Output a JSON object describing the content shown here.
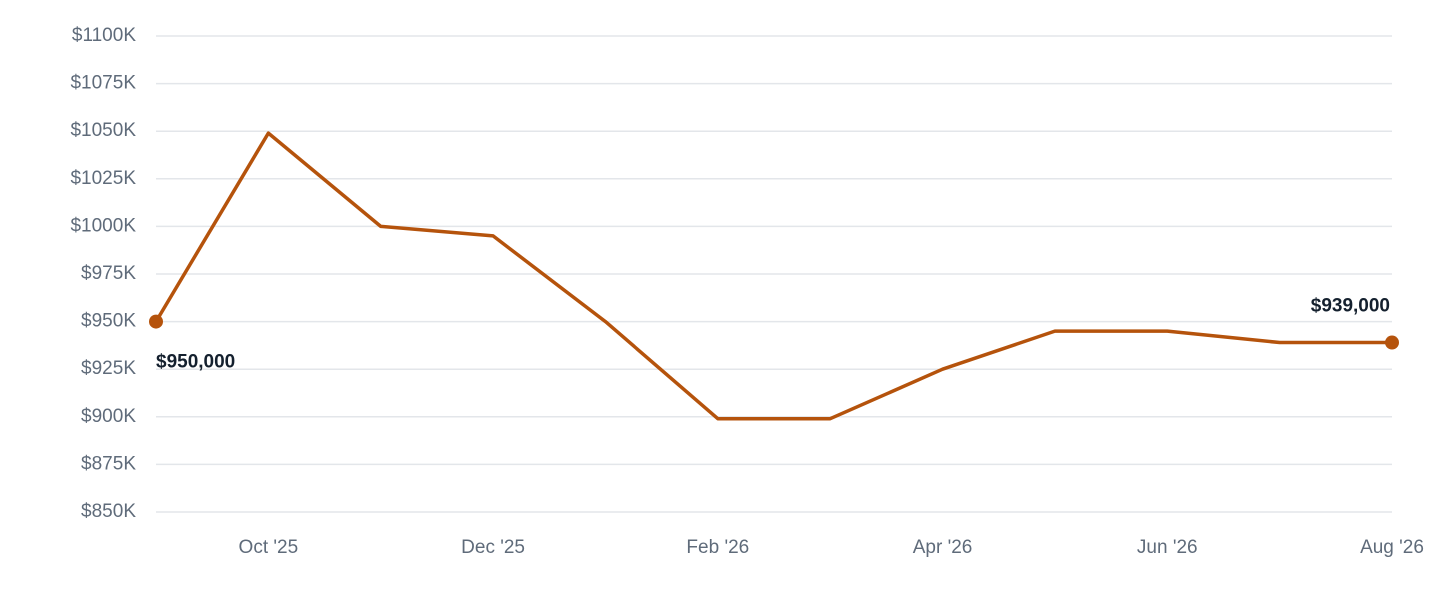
{
  "chart_data": {
    "type": "line",
    "categories": [
      null,
      "Oct '25",
      null,
      "Dec '25",
      null,
      "Feb '26",
      null,
      "Apr '26",
      null,
      "Jun '26",
      null,
      "Aug '26"
    ],
    "series": [
      {
        "color": "#b5530c",
        "values": [
          950000,
          1049000,
          1000000,
          995000,
          950000,
          899000,
          899000,
          925000,
          945000,
          945000,
          939000,
          939000
        ],
        "value_labels": [
          "$950,000",
          null,
          null,
          null,
          null,
          null,
          null,
          null,
          null,
          null,
          null,
          "$939,000"
        ]
      }
    ],
    "ylim": [
      850000,
      1100000
    ],
    "yticks": [
      {
        "value": 850000,
        "label": "$850K"
      },
      {
        "value": 875000,
        "label": "$875K"
      },
      {
        "value": 900000,
        "label": "$900K"
      },
      {
        "value": 925000,
        "label": "$925K"
      },
      {
        "value": 950000,
        "label": "$950K"
      },
      {
        "value": 975000,
        "label": "$975K"
      },
      {
        "value": 1000000,
        "label": "$1000K"
      },
      {
        "value": 1025000,
        "label": "$1025K"
      },
      {
        "value": 1050000,
        "label": "$1050K"
      },
      {
        "value": 1075000,
        "label": "$1075K"
      },
      {
        "value": 1100000,
        "label": "$1100K"
      }
    ],
    "grid": true
  }
}
